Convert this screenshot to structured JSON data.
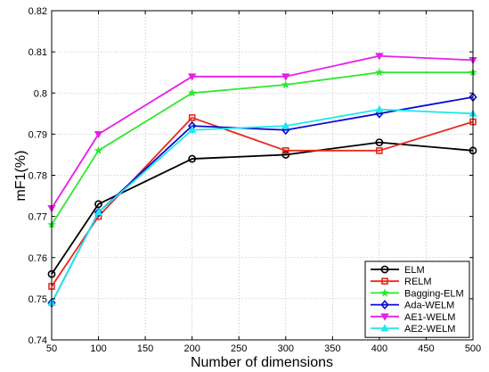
{
  "chart_data": {
    "type": "line",
    "title": "",
    "xlabel": "Number of dimensions",
    "ylabel": "mF1(%)",
    "x": [
      50,
      100,
      200,
      300,
      400,
      500
    ],
    "xlim": [
      50,
      500
    ],
    "ylim": [
      0.74,
      0.82
    ],
    "xticks": [
      50,
      100,
      150,
      200,
      250,
      300,
      350,
      400,
      450,
      500
    ],
    "yticks": [
      0.74,
      0.75,
      0.76,
      0.77,
      0.78,
      0.79,
      0.8,
      0.81,
      0.82
    ],
    "xtick_labels": [
      "50",
      "100",
      "150",
      "200",
      "250",
      "300",
      "350",
      "400",
      "450",
      "500"
    ],
    "ytick_labels": [
      "0.74",
      "0.75",
      "0.76",
      "0.77",
      "0.78",
      "0.79",
      "0.8",
      "0.81",
      "0.82"
    ],
    "grid": true,
    "legend_position": "bottom-right",
    "series": [
      {
        "name": "ELM",
        "color": "#000000",
        "marker": "circle",
        "values": [
          0.756,
          0.773,
          0.784,
          0.785,
          0.788,
          0.786
        ]
      },
      {
        "name": "RELM",
        "color": "#e8281e",
        "marker": "square",
        "values": [
          0.753,
          0.77,
          0.794,
          0.786,
          0.786,
          0.793
        ]
      },
      {
        "name": "Bagging-ELM",
        "color": "#2ee82e",
        "marker": "star",
        "values": [
          0.768,
          0.786,
          0.8,
          0.802,
          0.805,
          0.805
        ]
      },
      {
        "name": "Ada-WELM",
        "color": "#0a0ad0",
        "marker": "diamond",
        "values": [
          0.749,
          0.771,
          0.792,
          0.791,
          0.795,
          0.799
        ]
      },
      {
        "name": "AE1-WELM",
        "color": "#e81ee8",
        "marker": "triangle-down",
        "values": [
          0.772,
          0.79,
          0.804,
          0.804,
          0.809,
          0.808
        ]
      },
      {
        "name": "AE2-WELM",
        "color": "#1ee8f0",
        "marker": "triangle-up",
        "values": [
          0.749,
          0.771,
          0.791,
          0.792,
          0.796,
          0.795
        ]
      }
    ]
  }
}
